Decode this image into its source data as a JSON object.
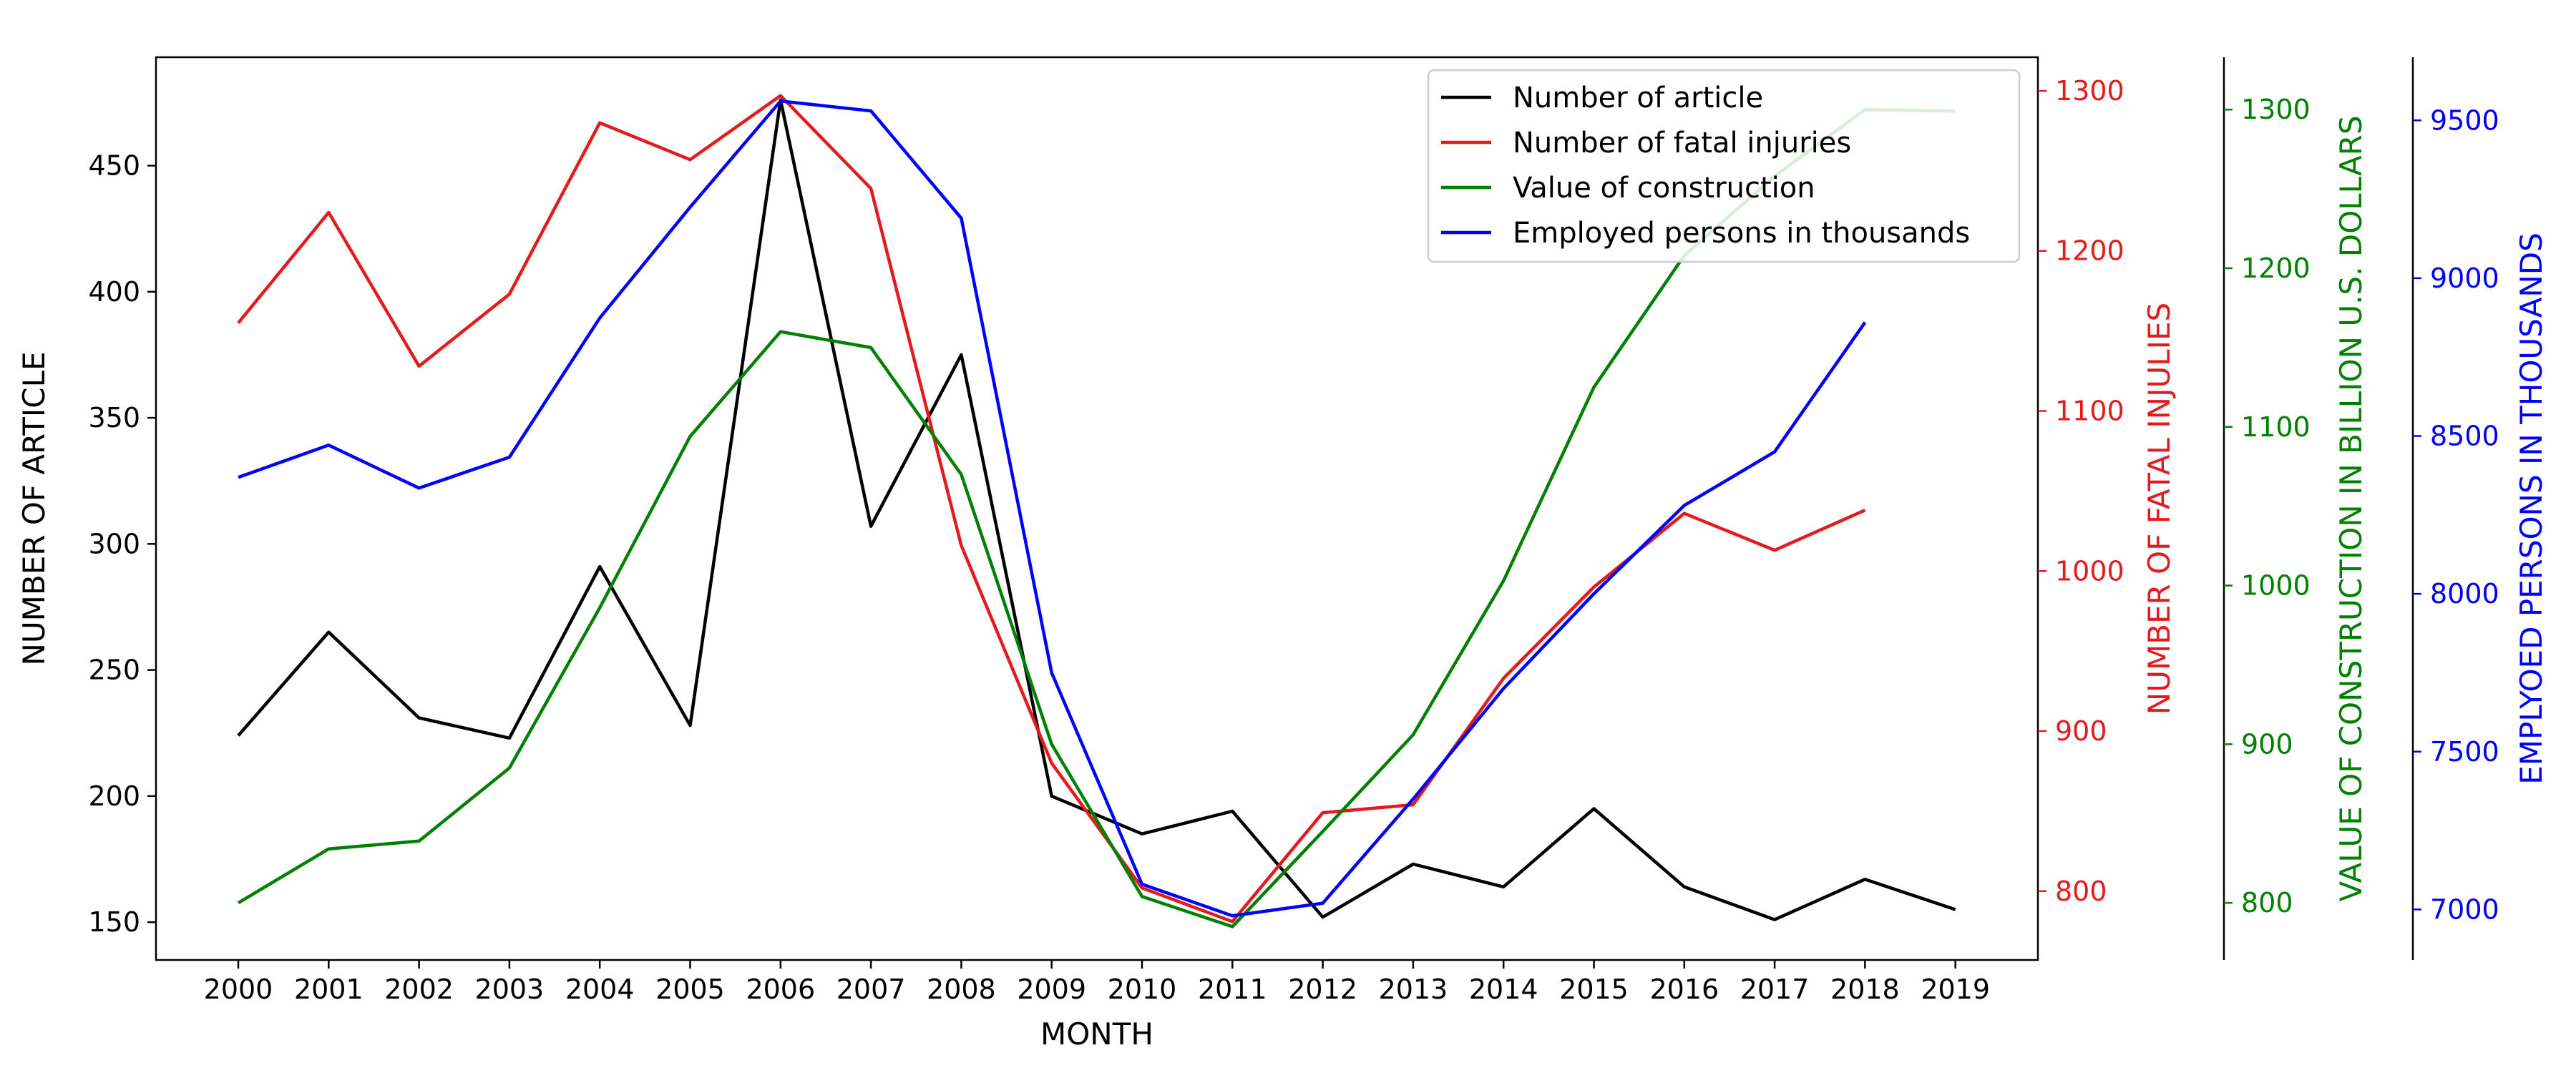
{
  "chart_data": {
    "type": "line",
    "xlabel": "MONTH",
    "categories": [
      "2000",
      "2001",
      "2002",
      "2003",
      "2004",
      "2005",
      "2006",
      "2007",
      "2008",
      "2009",
      "2010",
      "2011",
      "2012",
      "2013",
      "2014",
      "2015",
      "2016",
      "2017",
      "2018",
      "2019"
    ],
    "axes": [
      {
        "id": "articles",
        "label": "NUMBER OF ARTICLE",
        "color": "#000000",
        "ylim": [
          135,
          493
        ],
        "ticks": [
          150,
          200,
          250,
          300,
          350,
          400,
          450
        ]
      },
      {
        "id": "fatal",
        "label": "NUMBER OF FATAL INJULIES",
        "color": "#e41a1c",
        "ylim": [
          757,
          1321
        ],
        "ticks": [
          800,
          900,
          1000,
          1100,
          1200,
          1300
        ]
      },
      {
        "id": "construction",
        "label": "VALUE OF CONSTRUCTION IN BILLION U.S. DOLLARS",
        "color": "#008000",
        "ylim": [
          764,
          1333
        ],
        "ticks": [
          800,
          900,
          1000,
          1100,
          1200,
          1300
        ]
      },
      {
        "id": "employed",
        "label": "EMPLYOED PERSONS IN THOUSANDS",
        "color": "#0000ff",
        "ylim": [
          6840,
          9700
        ],
        "ticks": [
          7000,
          7500,
          8000,
          8500,
          9000,
          9500
        ]
      }
    ],
    "series": [
      {
        "name": "Number of article",
        "axis": "articles",
        "color": "#000000",
        "values": [
          224,
          265,
          231,
          223,
          291,
          228,
          476,
          307,
          375,
          200,
          185,
          194,
          152,
          173,
          164,
          195,
          164,
          151,
          167,
          155
        ]
      },
      {
        "name": "Number of fatal injuries",
        "axis": "fatal",
        "color": "#e41a1c",
        "values": [
          1155,
          1224,
          1128,
          1173,
          1280,
          1257,
          1297,
          1239,
          1016,
          880,
          802,
          781,
          849,
          854,
          933,
          990,
          1036,
          1013,
          1038,
          null
        ]
      },
      {
        "name": "Value of construction",
        "axis": "construction",
        "color": "#008000",
        "values": [
          800,
          834,
          839,
          885,
          986,
          1094,
          1160,
          1150,
          1070,
          900,
          804,
          785,
          845,
          906,
          1003,
          1125,
          1208,
          1258,
          1300,
          1299
        ]
      },
      {
        "name": "Employed persons in thousands",
        "axis": "employed",
        "color": "#0000ff",
        "values": [
          8369,
          8471,
          8335,
          8433,
          8874,
          9225,
          9561,
          9530,
          9190,
          7750,
          7080,
          6980,
          7020,
          7350,
          7700,
          8000,
          8280,
          8450,
          8860,
          null
        ]
      }
    ],
    "legend": {
      "position": "top-right"
    },
    "grid": false
  }
}
